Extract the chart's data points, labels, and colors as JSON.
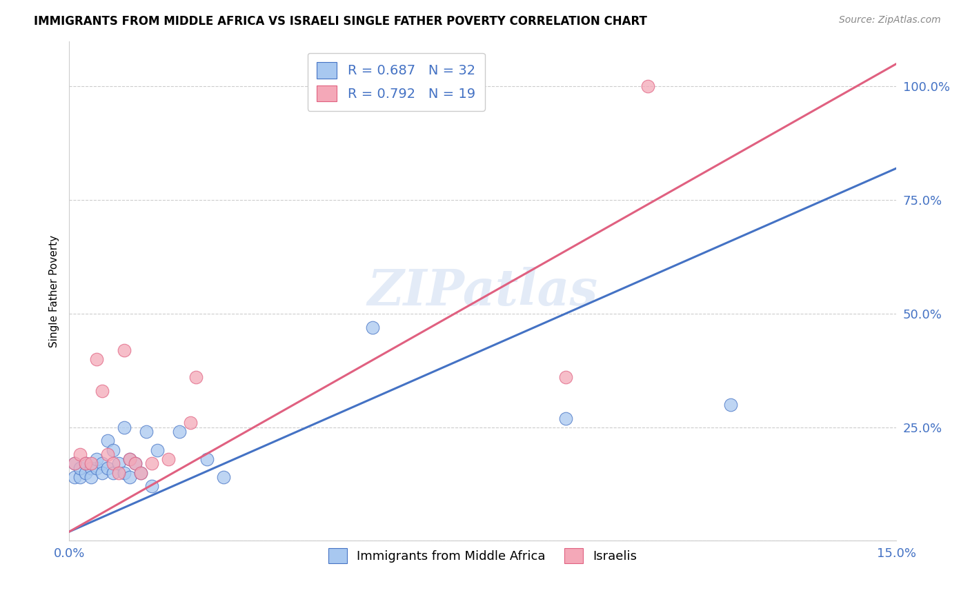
{
  "title": "IMMIGRANTS FROM MIDDLE AFRICA VS ISRAELI SINGLE FATHER POVERTY CORRELATION CHART",
  "source": "Source: ZipAtlas.com",
  "ylabel": "Single Father Poverty",
  "legend_blue_r": "R = 0.687",
  "legend_blue_n": "N = 32",
  "legend_pink_r": "R = 0.792",
  "legend_pink_n": "N = 19",
  "legend_label_blue": "Immigrants from Middle Africa",
  "legend_label_pink": "Israelis",
  "watermark": "ZIPatlas",
  "blue_color": "#A8C8F0",
  "pink_color": "#F4A8B8",
  "line_blue": "#4472C4",
  "line_pink": "#E06080",
  "tick_color": "#4472C4",
  "blue_scatter_x": [
    0.001,
    0.001,
    0.002,
    0.002,
    0.003,
    0.003,
    0.004,
    0.004,
    0.005,
    0.005,
    0.006,
    0.006,
    0.007,
    0.007,
    0.008,
    0.008,
    0.009,
    0.01,
    0.01,
    0.011,
    0.011,
    0.012,
    0.013,
    0.014,
    0.015,
    0.016,
    0.02,
    0.025,
    0.028,
    0.055,
    0.09,
    0.12
  ],
  "blue_scatter_y": [
    0.17,
    0.14,
    0.14,
    0.16,
    0.15,
    0.17,
    0.16,
    0.14,
    0.16,
    0.18,
    0.17,
    0.15,
    0.22,
    0.16,
    0.2,
    0.15,
    0.17,
    0.15,
    0.25,
    0.14,
    0.18,
    0.17,
    0.15,
    0.24,
    0.12,
    0.2,
    0.24,
    0.18,
    0.14,
    0.47,
    0.27,
    0.3
  ],
  "pink_scatter_x": [
    0.001,
    0.002,
    0.003,
    0.004,
    0.005,
    0.006,
    0.007,
    0.008,
    0.009,
    0.01,
    0.011,
    0.012,
    0.013,
    0.015,
    0.018,
    0.022,
    0.023,
    0.09,
    0.105
  ],
  "pink_scatter_y": [
    0.17,
    0.19,
    0.17,
    0.17,
    0.4,
    0.33,
    0.19,
    0.17,
    0.15,
    0.42,
    0.18,
    0.17,
    0.15,
    0.17,
    0.18,
    0.26,
    0.36,
    0.36,
    1.0
  ],
  "blue_line_x0": 0.0,
  "blue_line_y0": 0.02,
  "blue_line_x1": 0.15,
  "blue_line_y1": 0.82,
  "pink_line_x0": 0.0,
  "pink_line_y0": 0.02,
  "pink_line_x1": 0.15,
  "pink_line_y1": 1.05,
  "xlim": [
    0.0,
    0.15
  ],
  "ylim": [
    0.0,
    1.1
  ],
  "xticks": [
    0.0,
    0.0375,
    0.075,
    0.1125,
    0.15
  ],
  "xticklabels": [
    "0.0%",
    "",
    "",
    "",
    "15.0%"
  ],
  "yticks": [
    0.0,
    0.25,
    0.5,
    0.75,
    1.0
  ],
  "yticklabels": [
    "",
    "25.0%",
    "50.0%",
    "75.0%",
    "100.0%"
  ],
  "figsize": [
    14.06,
    8.92
  ],
  "dpi": 100
}
